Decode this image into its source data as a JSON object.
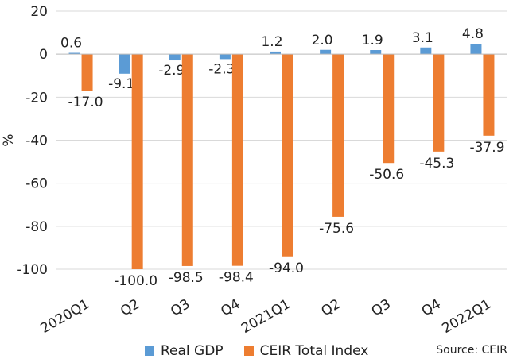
{
  "chart_data": {
    "type": "bar",
    "title": "",
    "xlabel": "",
    "ylabel": "%",
    "ylim": [
      -100,
      20
    ],
    "yticks": [
      "20",
      "0",
      "-20",
      "-40",
      "-60",
      "-80",
      "-100"
    ],
    "grid": true,
    "categories": [
      "2020Q1",
      "Q2",
      "Q3",
      "Q4",
      "2021Q1",
      "Q2",
      "Q3",
      "Q4",
      "2022Q1"
    ],
    "series": [
      {
        "name": "Real GDP",
        "color": "#5B9BD5",
        "values": [
          0.6,
          -9.1,
          -2.9,
          -2.3,
          1.2,
          2.0,
          1.9,
          3.1,
          4.8
        ],
        "labels": [
          "0.6",
          "-9.1",
          "-2.9",
          "-2.3",
          "1.2",
          "2.0",
          "1.9",
          "3.1",
          "4.8"
        ]
      },
      {
        "name": "CEIR Total Index",
        "color": "#ED7D31",
        "values": [
          -17.0,
          -100.0,
          -98.5,
          -98.4,
          -94.0,
          -75.6,
          -50.6,
          -45.3,
          -37.9
        ],
        "labels": [
          "-17.0",
          "-100.0",
          "-98.5",
          "-98.4",
          "-94.0",
          "-75.6",
          "-50.6",
          "-45.3",
          "-37.9"
        ]
      }
    ],
    "legend": {
      "position": "bottom"
    },
    "source": "Source: CEIR"
  }
}
